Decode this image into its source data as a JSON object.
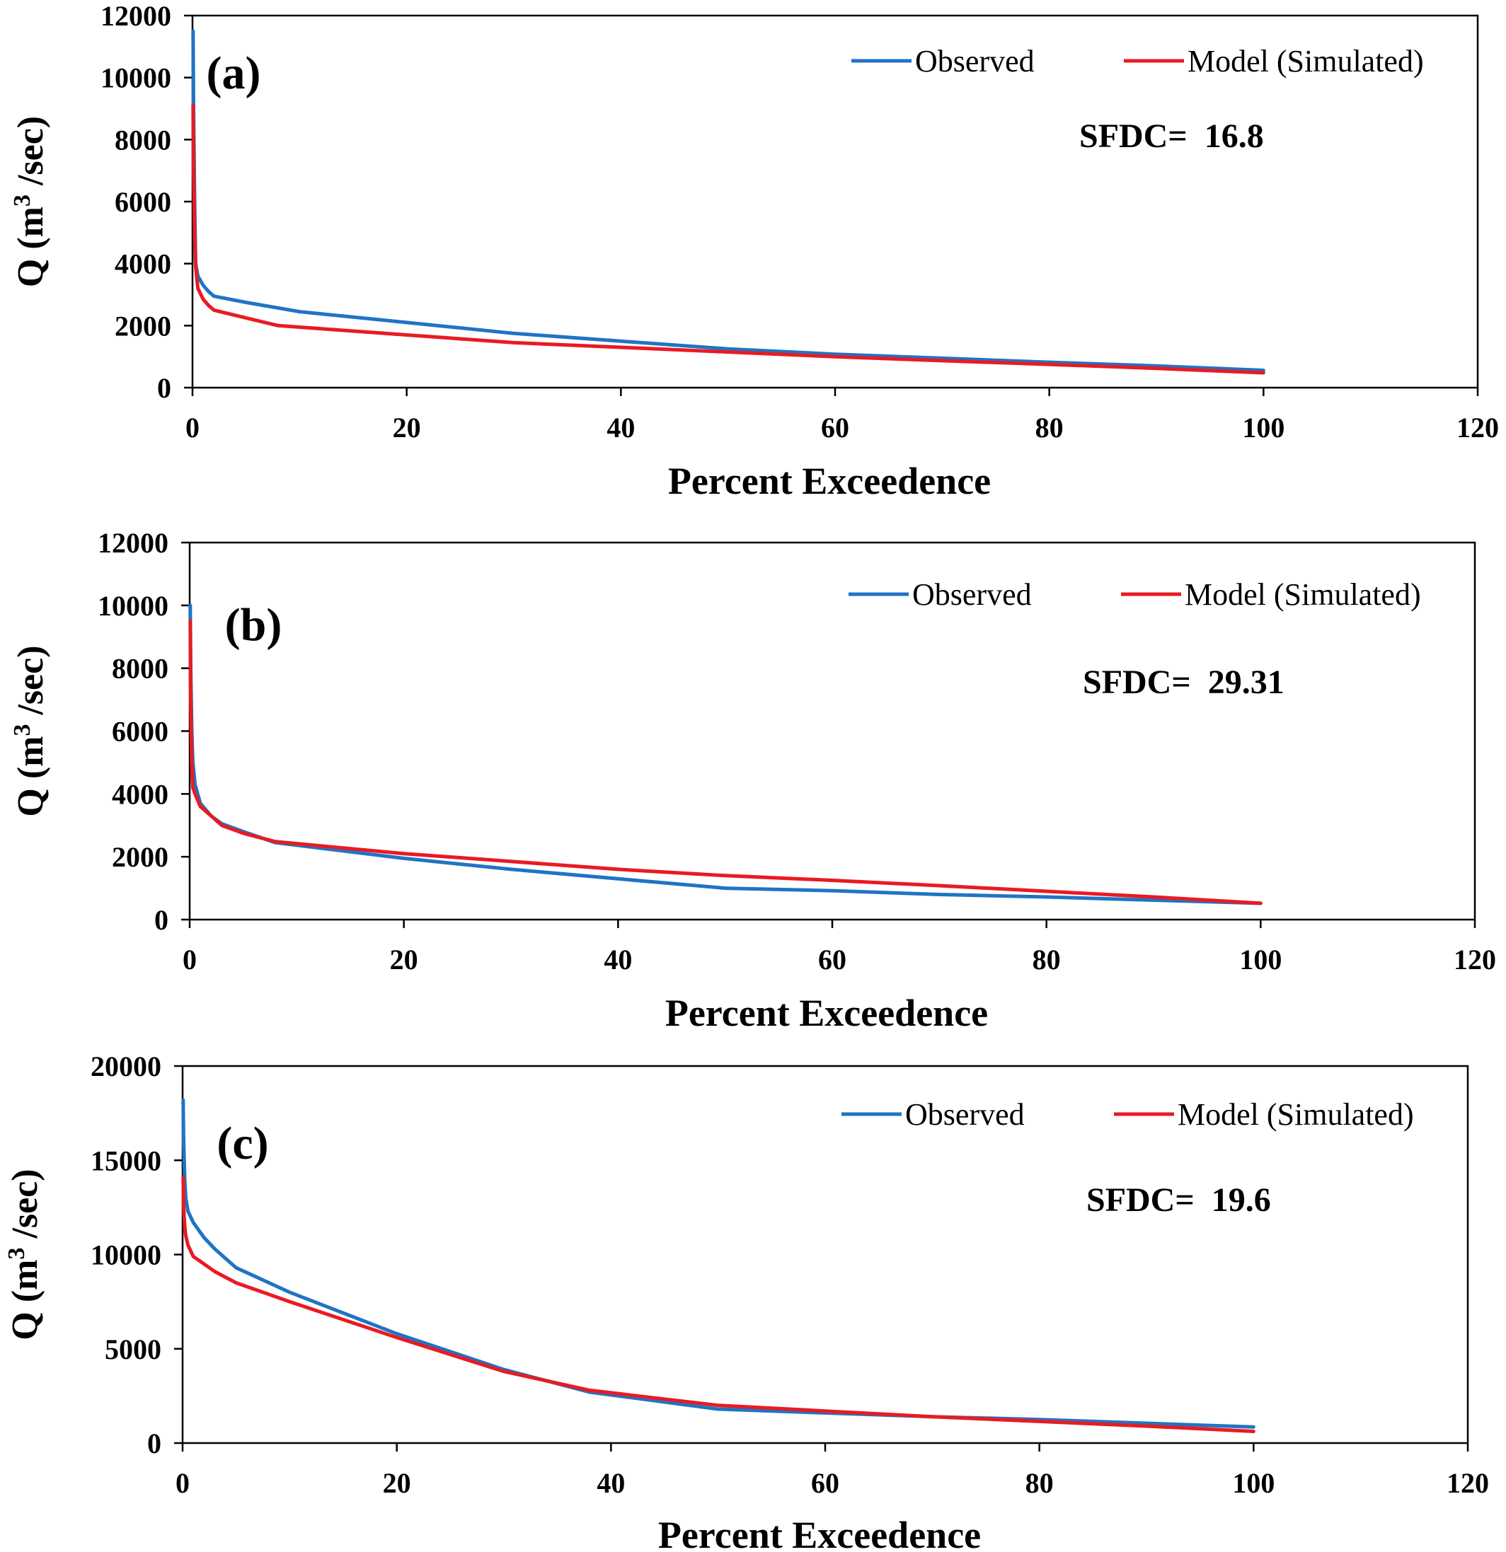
{
  "chart_data": [
    {
      "type": "line",
      "panel_label": "(a)",
      "xlabel": "Percent Exceedence",
      "ylabel": "Q (m3 /sec)",
      "xlim": [
        0,
        120
      ],
      "ylim": [
        0,
        12000
      ],
      "xticks": [
        0,
        20,
        40,
        60,
        80,
        100,
        120
      ],
      "yticks": [
        0,
        2000,
        4000,
        6000,
        8000,
        10000,
        12000
      ],
      "grid": false,
      "legend_position": "top-right",
      "annotation": "SFDC=  16.8",
      "series": [
        {
          "name": "Observed",
          "color": "#1f74c4",
          "x": [
            0.05,
            0.1,
            0.2,
            0.3,
            0.5,
            1,
            1.5,
            2,
            5,
            10,
            20,
            30,
            40,
            50,
            60,
            70,
            80,
            90,
            100
          ],
          "y": [
            11500,
            9000,
            6000,
            4000,
            3600,
            3300,
            3100,
            2950,
            2750,
            2450,
            2100,
            1750,
            1500,
            1250,
            1080,
            950,
            820,
            700,
            560
          ]
        },
        {
          "name": "Model (Simulated)",
          "color": "#e81b23",
          "x": [
            0.05,
            0.1,
            0.2,
            0.3,
            0.5,
            1,
            1.5,
            2,
            5,
            8,
            20,
            30,
            40,
            50,
            60,
            70,
            80,
            90,
            100
          ],
          "y": [
            9100,
            7000,
            5000,
            3900,
            3200,
            2850,
            2650,
            2500,
            2250,
            2000,
            1700,
            1450,
            1300,
            1150,
            1000,
            870,
            750,
            620,
            480
          ]
        }
      ]
    },
    {
      "type": "line",
      "panel_label": "(b)",
      "xlabel": "Percent Exceedence",
      "ylabel": "Q (m3 /sec)",
      "xlim": [
        0,
        120
      ],
      "ylim": [
        0,
        12000
      ],
      "xticks": [
        0,
        20,
        40,
        60,
        80,
        100,
        120
      ],
      "yticks": [
        0,
        2000,
        4000,
        6000,
        8000,
        10000,
        12000
      ],
      "grid": false,
      "legend_position": "top-right",
      "annotation": "SFDC=  29.31",
      "series": [
        {
          "name": "Observed",
          "color": "#1f74c4",
          "x": [
            0.05,
            0.1,
            0.2,
            0.3,
            0.5,
            1,
            2,
            3,
            5,
            8,
            20,
            30,
            40,
            50,
            60,
            70,
            80,
            90,
            100
          ],
          "y": [
            10000,
            8000,
            6000,
            5000,
            4300,
            3700,
            3300,
            3050,
            2800,
            2450,
            1950,
            1600,
            1300,
            1000,
            920,
            800,
            720,
            620,
            520
          ]
        },
        {
          "name": "Model (Simulated)",
          "color": "#e81b23",
          "x": [
            0.05,
            0.1,
            0.2,
            0.3,
            0.5,
            1,
            2,
            3,
            5,
            8,
            20,
            30,
            40,
            50,
            60,
            70,
            80,
            90,
            100
          ],
          "y": [
            9500,
            7000,
            5000,
            4200,
            4000,
            3600,
            3300,
            3000,
            2750,
            2480,
            2100,
            1850,
            1600,
            1400,
            1250,
            1080,
            900,
            720,
            520
          ]
        }
      ]
    },
    {
      "type": "line",
      "panel_label": "(c)",
      "xlabel": "Percent Exceedence",
      "ylabel": "Q (m3 /sec)",
      "xlim": [
        0,
        120
      ],
      "ylim": [
        0,
        20000
      ],
      "xticks": [
        0,
        20,
        40,
        60,
        80,
        100,
        120
      ],
      "yticks": [
        0,
        5000,
        10000,
        15000,
        20000
      ],
      "grid": false,
      "legend_position": "top-right",
      "annotation": "SFDC=  19.6",
      "series": [
        {
          "name": "Observed",
          "color": "#1f74c4",
          "x": [
            0.05,
            0.1,
            0.2,
            0.3,
            0.5,
            1,
            2,
            3,
            5,
            10,
            20,
            30,
            38,
            50,
            60,
            70,
            80,
            90,
            100
          ],
          "y": [
            18200,
            16000,
            14000,
            13000,
            12300,
            11700,
            10900,
            10300,
            9300,
            8000,
            5800,
            3900,
            2700,
            1800,
            1600,
            1400,
            1250,
            1050,
            850
          ]
        },
        {
          "name": "Model (Simulated)",
          "color": "#e81b23",
          "x": [
            0.05,
            0.1,
            0.2,
            0.3,
            0.5,
            1,
            2,
            3,
            5,
            10,
            20,
            30,
            38,
            50,
            60,
            70,
            80,
            90,
            100
          ],
          "y": [
            14100,
            12500,
            11500,
            11000,
            10500,
            9900,
            9500,
            9100,
            8500,
            7500,
            5600,
            3800,
            2800,
            2000,
            1700,
            1400,
            1150,
            900,
            620
          ]
        }
      ]
    }
  ]
}
